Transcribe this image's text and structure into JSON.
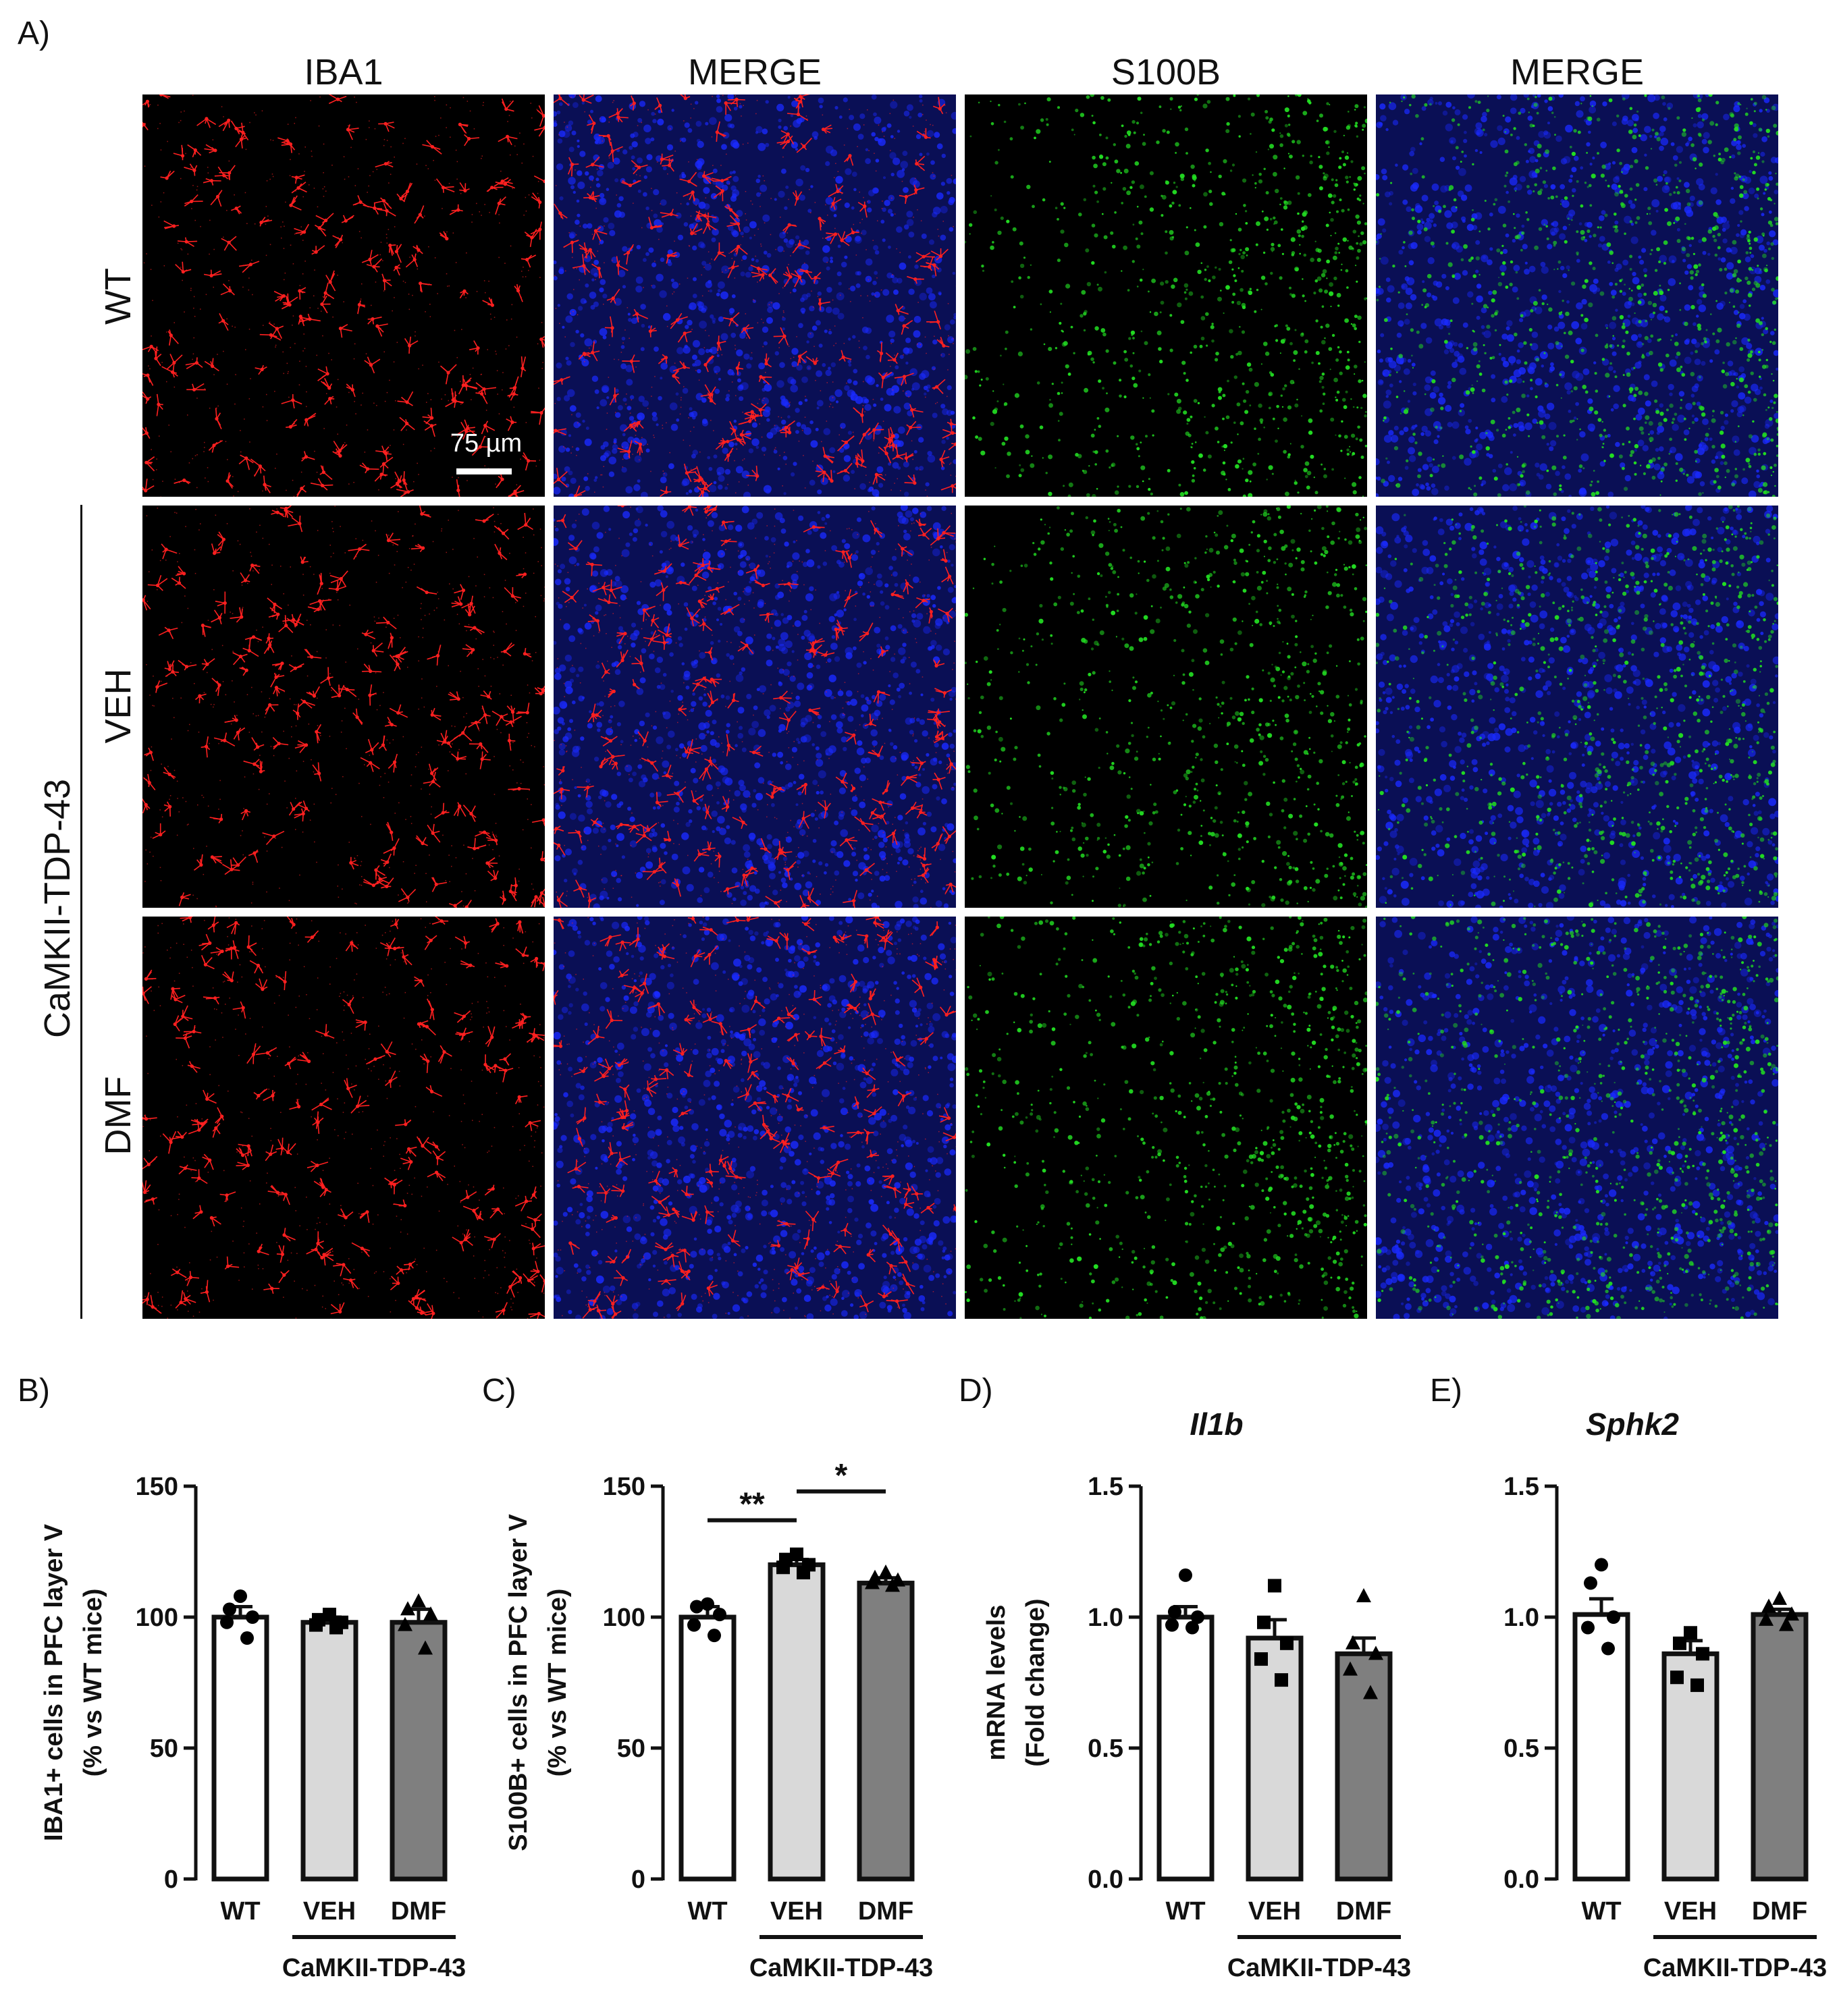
{
  "panel_a": {
    "letter": "A)",
    "column_headers": [
      "IBA1",
      "MERGE",
      "S100B",
      "MERGE"
    ],
    "row_labels": [
      "WT",
      "VEH",
      "DMF"
    ],
    "group_label": "CaMKII-TDP-43",
    "scale_bar": "75 µm",
    "channel_colors": {
      "iba1": "#ff2020",
      "s100b": "#22dd22",
      "dapi": "#1a2aff"
    }
  },
  "chart_data": [
    {
      "panel": "B)",
      "type": "bar",
      "title": "",
      "ylabel": [
        "IBA1+ cells in PFC layer V",
        "(% vs WT mice)"
      ],
      "ylim": [
        0,
        150
      ],
      "yticks": [
        "0",
        "50",
        "100",
        "150"
      ],
      "categories": [
        "WT",
        "VEH",
        "DMF"
      ],
      "group_label": "CaMKII-TDP-43",
      "values": [
        100,
        98,
        98
      ],
      "sem": [
        4,
        2,
        5
      ],
      "bar_colors": [
        "#ffffff",
        "#d9d9d9",
        "#7f7f7f"
      ],
      "markers": [
        "circle",
        "square",
        "triangle"
      ],
      "points": [
        [
          108,
          103,
          100,
          98,
          92
        ],
        [
          101,
          99,
          98,
          97,
          96
        ],
        [
          106,
          103,
          101,
          97,
          88
        ]
      ],
      "significance": []
    },
    {
      "panel": "C)",
      "type": "bar",
      "title": "",
      "ylabel": [
        "S100B+ cells in PFC layer V",
        "(% vs WT mice)"
      ],
      "ylim": [
        0,
        150
      ],
      "yticks": [
        "0",
        "50",
        "100",
        "150"
      ],
      "categories": [
        "WT",
        "VEH",
        "DMF"
      ],
      "group_label": "CaMKII-TDP-43",
      "values": [
        100,
        120,
        113
      ],
      "sem": [
        4,
        2,
        2
      ],
      "bar_colors": [
        "#ffffff",
        "#d9d9d9",
        "#7f7f7f"
      ],
      "markers": [
        "circle",
        "square",
        "triangle"
      ],
      "points": [
        [
          105,
          104,
          101,
          97,
          93
        ],
        [
          124,
          122,
          120,
          119,
          117
        ],
        [
          117,
          115,
          114,
          113,
          112
        ]
      ],
      "significance": [
        {
          "from": 0,
          "to": 1,
          "label": "**",
          "y": 137
        },
        {
          "from": 1,
          "to": 2,
          "label": "*",
          "y": 148
        }
      ]
    },
    {
      "panel": "D)",
      "type": "bar",
      "title": "Il1b",
      "ylabel": [
        "mRNA levels",
        "(Fold change)"
      ],
      "ylim": [
        0,
        1.5
      ],
      "yticks": [
        "0.0",
        "0.5",
        "1.0",
        "1.5"
      ],
      "categories": [
        "WT",
        "VEH",
        "DMF"
      ],
      "group_label": "CaMKII-TDP-43",
      "values": [
        1.0,
        0.92,
        0.86
      ],
      "sem": [
        0.04,
        0.07,
        0.06
      ],
      "bar_colors": [
        "#ffffff",
        "#d9d9d9",
        "#7f7f7f"
      ],
      "markers": [
        "circle",
        "square",
        "triangle"
      ],
      "points": [
        [
          1.16,
          1.02,
          1.0,
          0.97,
          0.96
        ],
        [
          1.12,
          0.98,
          0.9,
          0.84,
          0.76
        ],
        [
          1.08,
          0.9,
          0.86,
          0.8,
          0.71
        ]
      ],
      "significance": []
    },
    {
      "panel": "E)",
      "type": "bar",
      "title": "Sphk2",
      "ylabel": [],
      "ylim": [
        0,
        1.5
      ],
      "yticks": [
        "0.0",
        "0.5",
        "1.0",
        "1.5"
      ],
      "categories": [
        "WT",
        "VEH",
        "DMF"
      ],
      "group_label": "CaMKII-TDP-43",
      "values": [
        1.01,
        0.86,
        1.01
      ],
      "sem": [
        0.06,
        0.05,
        0.02
      ],
      "bar_colors": [
        "#ffffff",
        "#d9d9d9",
        "#7f7f7f"
      ],
      "markers": [
        "circle",
        "square",
        "triangle"
      ],
      "points": [
        [
          1.2,
          1.13,
          1.0,
          0.96,
          0.88
        ],
        [
          0.94,
          0.9,
          0.86,
          0.77,
          0.74
        ],
        [
          1.07,
          1.04,
          1.01,
          0.99,
          0.97
        ]
      ],
      "significance": []
    }
  ]
}
